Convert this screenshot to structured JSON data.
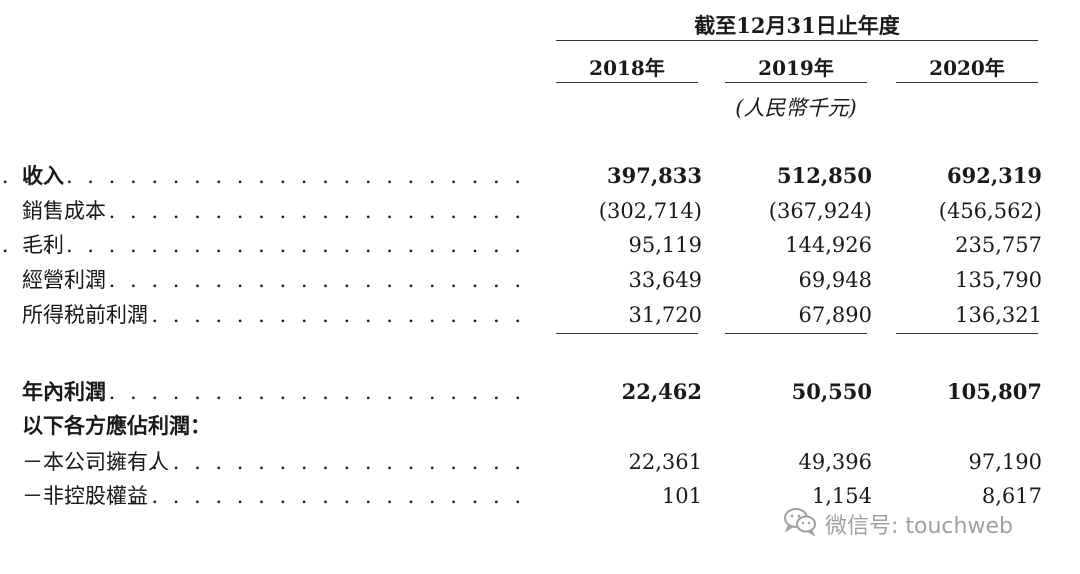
{
  "header": {
    "period": "截至12月31日止年度",
    "years": [
      "2018年",
      "2019年",
      "2020年"
    ],
    "unit": "(人民幣千元)"
  },
  "rows": [
    {
      "label": "收入",
      "values": [
        "397,833",
        "512,850",
        "692,319"
      ]
    },
    {
      "label": "銷售成本",
      "values": [
        "(302,714)",
        "(367,924)",
        "(456,562)"
      ]
    },
    {
      "label": "毛利",
      "values": [
        "95,119",
        "144,926",
        "235,757"
      ]
    },
    {
      "label": "經營利潤",
      "values": [
        "33,649",
        "69,948",
        "135,790"
      ]
    },
    {
      "label": "所得税前利潤",
      "values": [
        "31,720",
        "67,890",
        "136,321"
      ]
    },
    {
      "label": "年內利潤",
      "values": [
        "22,462",
        "50,550",
        "105,807"
      ]
    },
    {
      "label": "以下各方應佔利潤：",
      "values": [
        "",
        "",
        ""
      ]
    },
    {
      "label": "－本公司擁有人",
      "values": [
        "22,361",
        "49,396",
        "97,190"
      ]
    },
    {
      "label": "－非控股權益",
      "values": [
        "101",
        "1,154",
        "8,617"
      ]
    }
  ],
  "watermark": {
    "text": "微信号: touchweb",
    "icon": "wechat-icon",
    "color": "#a0a0a0"
  }
}
